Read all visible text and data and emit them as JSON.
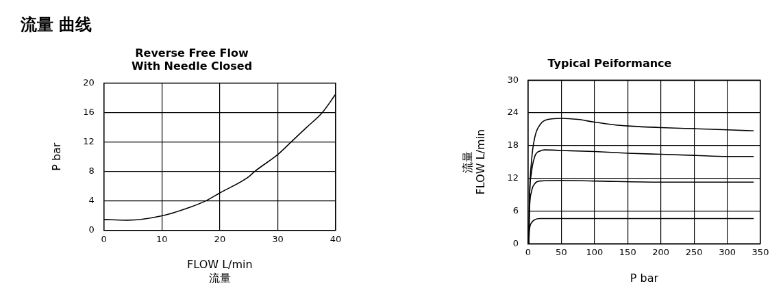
{
  "chart_data": [
    {
      "type": "other",
      "title": "流量 曲线"
    },
    {
      "type": "line",
      "title": "Reverse Free Flow\nWith Needle Closed",
      "xlabel": "FLOW L/min\n流量",
      "ylabel": "P bar",
      "xlim": [
        0,
        40
      ],
      "xticks": [
        0,
        10,
        20,
        30,
        40
      ],
      "ylim": [
        0,
        20
      ],
      "yticks": [
        0,
        4,
        8,
        12,
        16,
        20
      ],
      "grid": true,
      "legend": false,
      "marker": "none",
      "line_style": "solid",
      "series": [
        {
          "color": "#000000",
          "x": [
            0,
            4,
            10,
            15,
            17.5,
            20,
            25,
            26,
            30,
            32.3,
            35,
            37.7,
            40
          ],
          "values": [
            1.5,
            1.4,
            2.0,
            3.2,
            4.0,
            5.1,
            7.3,
            8.0,
            10.3,
            12.0,
            14.0,
            16.0,
            18.5
          ]
        }
      ]
    },
    {
      "type": "line",
      "title": "Typical Peiformance",
      "xlabel": "P bar",
      "ylabel": "流量\nFLOW L/min",
      "xlim": [
        0,
        350
      ],
      "xticks": [
        0,
        50,
        100,
        150,
        200,
        250,
        300,
        350
      ],
      "ylim": [
        0,
        30
      ],
      "yticks": [
        0,
        6,
        12,
        18,
        24,
        30
      ],
      "grid": true,
      "legend": false,
      "marker": "none",
      "line_style": "solid",
      "series": [
        {
          "color": "#000000",
          "x": [
            1,
            2,
            5,
            10,
            19,
            30,
            50,
            75,
            100,
            130,
            150,
            200,
            250,
            300,
            340
          ],
          "values": [
            0,
            8,
            15,
            19.5,
            22,
            22.8,
            23,
            22.8,
            22.3,
            21.8,
            21.6,
            21.3,
            21.1,
            20.9,
            20.7
          ]
        },
        {
          "color": "#000000",
          "x": [
            1,
            2,
            5,
            10,
            18,
            25,
            50,
            100,
            150,
            200,
            250,
            300,
            340
          ],
          "values": [
            0,
            8,
            13,
            16,
            17,
            17.2,
            17.1,
            16.9,
            16.6,
            16.4,
            16.2,
            16.0,
            16.0
          ]
        },
        {
          "color": "#000000",
          "x": [
            1,
            2,
            5,
            10,
            18,
            50,
            100,
            200,
            340
          ],
          "values": [
            0,
            6,
            9.5,
            11,
            11.5,
            11.6,
            11.5,
            11.3,
            11.3
          ]
        },
        {
          "color": "#000000",
          "x": [
            1,
            2,
            5,
            10,
            18,
            340
          ],
          "values": [
            0,
            2.5,
            3.8,
            4.4,
            4.6,
            4.6
          ]
        }
      ]
    }
  ]
}
